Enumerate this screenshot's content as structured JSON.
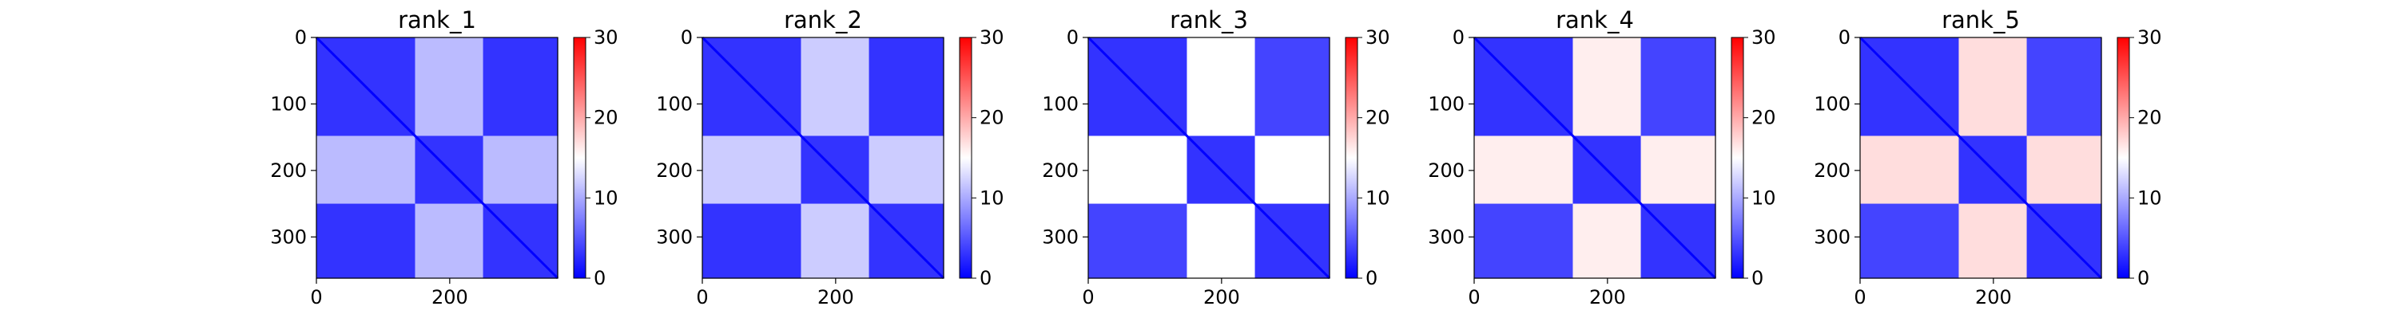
{
  "figure": {
    "colorbar_ticks": [
      "0",
      "10",
      "20",
      "30"
    ],
    "colormap": {
      "low": "#0000ff",
      "mid": "#ffffff",
      "high": "#ff0000"
    }
  },
  "chart_data": [
    {
      "type": "heatmap",
      "title": "rank_1",
      "xlabel": "",
      "ylabel": "",
      "xlim": [
        0,
        362
      ],
      "ylim": [
        362,
        0
      ],
      "xticks": [
        "0",
        "200"
      ],
      "yticks": [
        "0",
        "100",
        "200",
        "300"
      ],
      "clim": [
        0,
        30
      ],
      "domains": [
        [
          0,
          148
        ],
        [
          148,
          250
        ],
        [
          250,
          362
        ]
      ],
      "block_levels": [
        [
          3,
          11,
          3
        ],
        [
          11,
          3,
          11
        ],
        [
          3,
          11,
          3
        ]
      ]
    },
    {
      "type": "heatmap",
      "title": "rank_2",
      "xlabel": "",
      "ylabel": "",
      "xlim": [
        0,
        362
      ],
      "ylim": [
        362,
        0
      ],
      "xticks": [
        "0",
        "200"
      ],
      "yticks": [
        "0",
        "100",
        "200",
        "300"
      ],
      "clim": [
        0,
        30
      ],
      "domains": [
        [
          0,
          148
        ],
        [
          148,
          250
        ],
        [
          250,
          362
        ]
      ],
      "block_levels": [
        [
          3,
          12,
          3
        ],
        [
          12,
          3,
          12
        ],
        [
          3,
          12,
          3
        ]
      ]
    },
    {
      "type": "heatmap",
      "title": "rank_3",
      "xlabel": "",
      "ylabel": "",
      "xlim": [
        0,
        362
      ],
      "ylim": [
        362,
        0
      ],
      "xticks": [
        "0",
        "200"
      ],
      "yticks": [
        "0",
        "100",
        "200",
        "300"
      ],
      "clim": [
        0,
        30
      ],
      "domains": [
        [
          0,
          148
        ],
        [
          148,
          250
        ],
        [
          250,
          362
        ]
      ],
      "block_levels": [
        [
          3,
          15,
          4
        ],
        [
          15,
          3,
          15
        ],
        [
          4,
          15,
          3
        ]
      ]
    },
    {
      "type": "heatmap",
      "title": "rank_4",
      "xlabel": "",
      "ylabel": "",
      "xlim": [
        0,
        362
      ],
      "ylim": [
        362,
        0
      ],
      "xticks": [
        "0",
        "200"
      ],
      "yticks": [
        "0",
        "100",
        "200",
        "300"
      ],
      "clim": [
        0,
        30
      ],
      "domains": [
        [
          0,
          148
        ],
        [
          148,
          250
        ],
        [
          250,
          362
        ]
      ],
      "block_levels": [
        [
          3,
          16,
          4
        ],
        [
          16,
          3,
          16
        ],
        [
          4,
          16,
          3
        ]
      ]
    },
    {
      "type": "heatmap",
      "title": "rank_5",
      "xlabel": "",
      "ylabel": "",
      "xlim": [
        0,
        362
      ],
      "ylim": [
        362,
        0
      ],
      "xticks": [
        "0",
        "200"
      ],
      "yticks": [
        "0",
        "100",
        "200",
        "300"
      ],
      "clim": [
        0,
        30
      ],
      "domains": [
        [
          0,
          148
        ],
        [
          148,
          250
        ],
        [
          250,
          362
        ]
      ],
      "block_levels": [
        [
          3,
          17,
          4
        ],
        [
          17,
          3,
          17
        ],
        [
          4,
          17,
          3
        ]
      ]
    }
  ]
}
